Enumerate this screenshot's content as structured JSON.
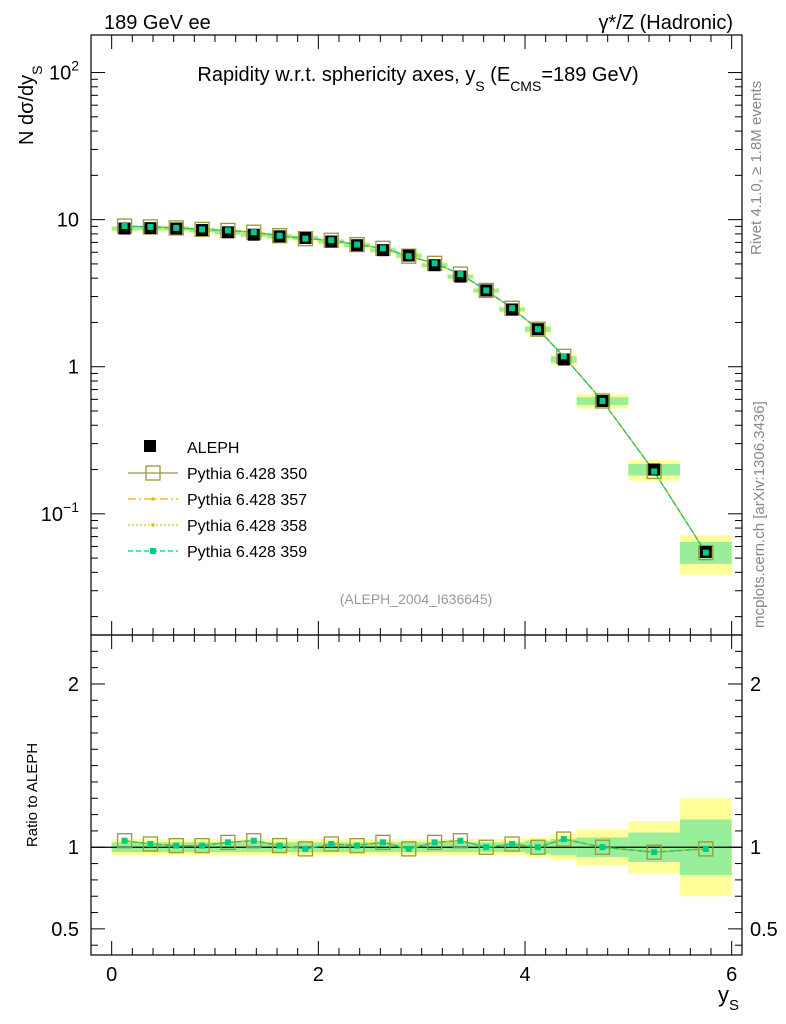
{
  "header": {
    "left": "189 GeV ee",
    "right": "γ*/Z (Hadronic)"
  },
  "side": {
    "rivet": "Rivet 4.1.0, ≥ 1.8M events",
    "mcplots": "mcplots.cern.ch [arXiv:1306.3436]"
  },
  "chart_data": {
    "type": "scatter",
    "title": "Rapidity w.r.t. sphericity axes, y_S (E_CMS=189 GeV)",
    "title_parts": {
      "main": "Rapidity w.r.t. sphericity axes, y",
      "sub1": "S",
      "mid": " (E",
      "sub2": "CMS",
      "end": "=189 GeV)"
    },
    "analysis_label": "(ALEPH_2004_I636645)",
    "xlabel": "y",
    "xlabel_sub": "S",
    "ylabel": "N  dσ/dy",
    "ylabel_sub": "S",
    "ratio_ylabel": "Ratio to ALEPH",
    "xlim": [
      -0.2,
      6.1
    ],
    "ylim_main": [
      0.015,
      180
    ],
    "ylim_ratio": [
      0.34,
      2.3
    ],
    "yscale_main": "log",
    "x_ticks": [
      "0",
      "2",
      "4",
      "6"
    ],
    "y_ticks_main": {
      "labels": [
        "10^-1",
        "1",
        "10",
        "10^2"
      ],
      "values": [
        0.1,
        1,
        10,
        100
      ]
    },
    "y_ticks_ratio": {
      "labels": [
        "0.5",
        "1",
        "2"
      ],
      "values": [
        0.5,
        1,
        2
      ]
    },
    "x": [
      0.125,
      0.375,
      0.625,
      0.875,
      1.125,
      1.375,
      1.625,
      1.875,
      2.125,
      2.375,
      2.625,
      2.875,
      3.125,
      3.375,
      3.625,
      3.875,
      4.125,
      4.375,
      4.75,
      5.25,
      5.75
    ],
    "bin_edges": [
      0,
      0.25,
      0.5,
      0.75,
      1.0,
      1.25,
      1.5,
      1.75,
      2.0,
      2.25,
      2.5,
      2.75,
      3.0,
      3.25,
      3.5,
      3.75,
      4.0,
      4.25,
      4.5,
      5.0,
      5.5,
      6.0
    ],
    "data_values": [
      8.7,
      8.75,
      8.7,
      8.5,
      8.2,
      7.9,
      7.7,
      7.5,
      7.1,
      6.7,
      6.2,
      5.7,
      4.9,
      4.1,
      3.3,
      2.45,
      1.8,
      1.12,
      0.585,
      0.2,
      0.055
    ],
    "band_inner": [
      0.03,
      0.03,
      0.03,
      0.03,
      0.03,
      0.03,
      0.03,
      0.03,
      0.03,
      0.03,
      0.03,
      0.03,
      0.03,
      0.03,
      0.03,
      0.03,
      0.04,
      0.05,
      0.06,
      0.09,
      0.17
    ],
    "band_outer": [
      0.05,
      0.05,
      0.05,
      0.05,
      0.05,
      0.05,
      0.05,
      0.05,
      0.05,
      0.05,
      0.05,
      0.05,
      0.05,
      0.05,
      0.05,
      0.05,
      0.06,
      0.08,
      0.11,
      0.16,
      0.3
    ],
    "legend": [
      "ALEPH",
      "Pythia 6.428 350",
      "Pythia 6.428 357",
      "Pythia 6.428 358",
      "Pythia 6.428 359"
    ],
    "series": [
      {
        "name": "Pythia 6.428 350",
        "color": "#999933",
        "ratio": [
          1.04,
          1.02,
          1.01,
          1.01,
          1.03,
          1.04,
          1.01,
          0.99,
          1.02,
          1.01,
          1.03,
          0.99,
          1.03,
          1.04,
          1.0,
          1.02,
          1.0,
          1.05,
          1.0,
          0.97,
          0.99
        ]
      },
      {
        "name": "Pythia 6.428 357",
        "color": "#e6b800",
        "ratio": [
          1.04,
          1.02,
          1.01,
          1.01,
          1.03,
          1.04,
          1.01,
          0.99,
          1.02,
          1.01,
          1.03,
          0.99,
          1.03,
          1.04,
          1.0,
          1.02,
          1.0,
          1.05,
          1.0,
          0.97,
          0.99
        ]
      },
      {
        "name": "Pythia 6.428 358",
        "color": "#cccc00",
        "ratio": [
          1.04,
          1.02,
          1.01,
          1.01,
          1.03,
          1.04,
          1.01,
          0.99,
          1.02,
          1.01,
          1.03,
          0.99,
          1.03,
          1.04,
          1.0,
          1.02,
          1.0,
          1.05,
          1.0,
          0.97,
          0.99
        ]
      },
      {
        "name": "Pythia 6.428 359",
        "color": "#00cc88",
        "ratio": [
          1.04,
          1.02,
          1.01,
          1.01,
          1.03,
          1.04,
          1.01,
          0.99,
          1.02,
          1.01,
          1.03,
          0.99,
          1.03,
          1.04,
          1.0,
          1.02,
          1.0,
          1.05,
          1.0,
          0.97,
          0.99
        ]
      }
    ],
    "colors": {
      "band_outer": "#ffff99",
      "band_inner": "#99ee99",
      "data": "#000000"
    }
  }
}
